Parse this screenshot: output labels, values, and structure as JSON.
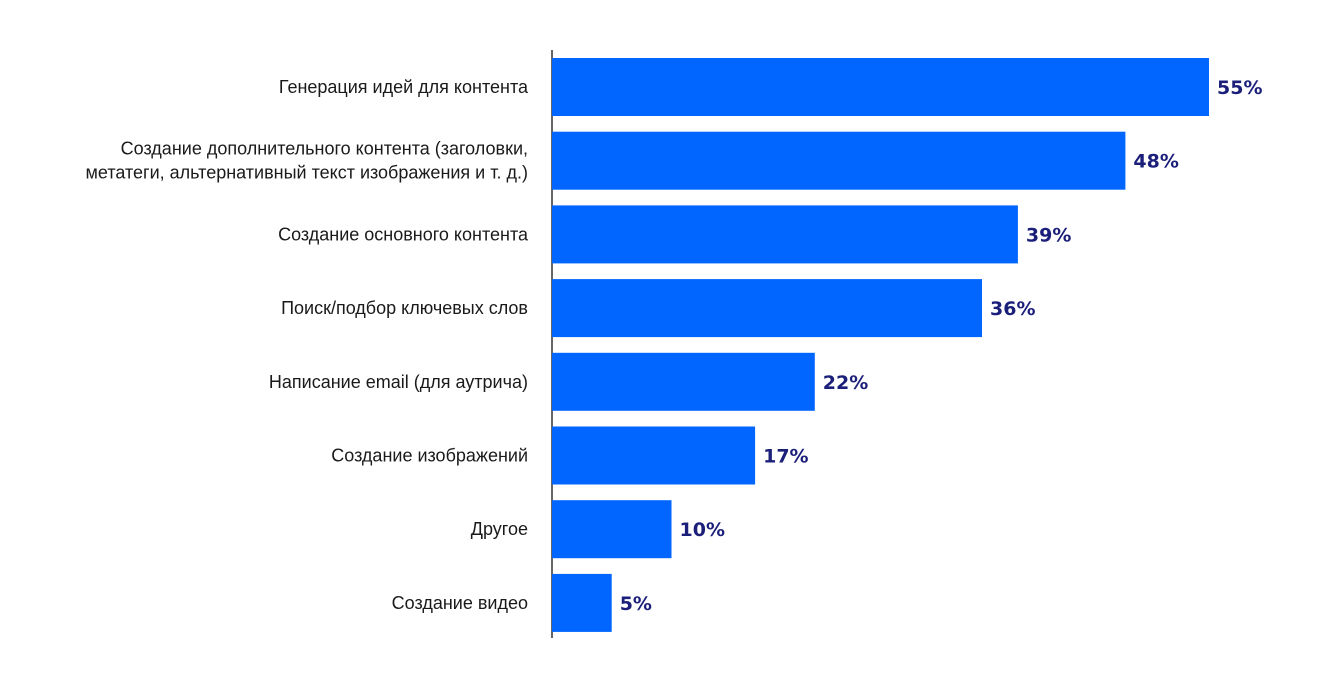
{
  "chart_data": {
    "type": "bar",
    "orientation": "horizontal",
    "categories": [
      [
        "Генерация идей для контента"
      ],
      [
        "Создание дополнительного контента (заголовки,",
        "метатеги, альтернативный текст изображения и т. д.)"
      ],
      [
        "Создание основного контента"
      ],
      [
        "Поиск/подбор ключевых слов"
      ],
      [
        "Написание email (для аутрича)"
      ],
      [
        "Создание изображений"
      ],
      [
        "Другое"
      ],
      [
        "Создание видео"
      ]
    ],
    "values": [
      55,
      48,
      39,
      36,
      22,
      17,
      10,
      5
    ],
    "value_labels": [
      "55%",
      "48%",
      "39%",
      "36%",
      "22%",
      "17%",
      "10%",
      "5%"
    ],
    "unit": "%",
    "xlim": [
      0,
      55
    ],
    "grid": false,
    "legend": "none",
    "colors": {
      "bar": "#0066ff",
      "value_label": "#1b1f7a",
      "category_label": "#1a1a1a",
      "axis": "#333333"
    }
  }
}
